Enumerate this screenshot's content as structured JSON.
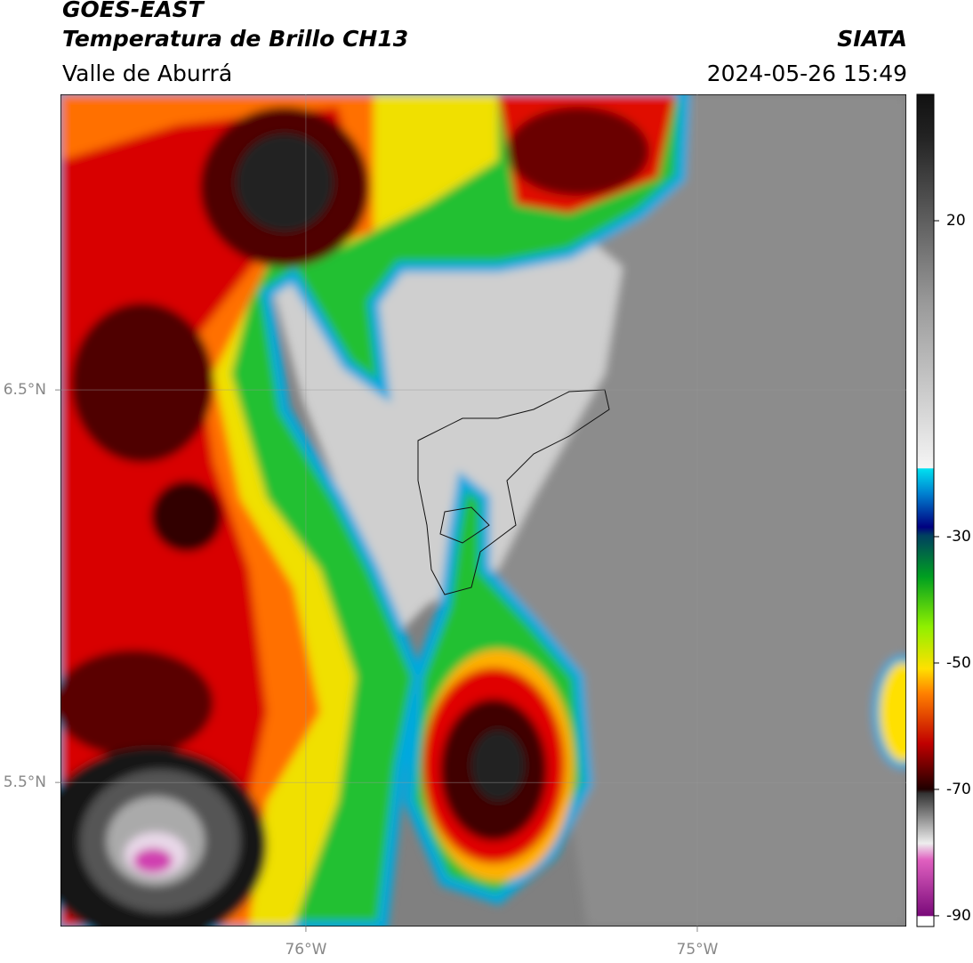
{
  "header": {
    "satellite": "GOES-EAST",
    "product": "Temperatura de Brillo CH13",
    "region": "Valle de Aburrá",
    "source": "SIATA",
    "datetime": "2024-05-26 15:49"
  },
  "map": {
    "xlim": [
      -76.627,
      -74.466
    ],
    "ylim": [
      5.133,
      7.253
    ],
    "xticks": [
      {
        "value": -76,
        "label": "76°W"
      },
      {
        "value": -75,
        "label": "75°W"
      }
    ],
    "yticks": [
      {
        "value": 5.5,
        "label": "5.5°N"
      },
      {
        "value": 6.5,
        "label": "6.5°N"
      }
    ],
    "grid": true
  },
  "colorbar": {
    "lim": [
      -91.7,
      40
    ],
    "ticks": [
      -90,
      -70,
      -50,
      -30,
      20
    ]
  }
}
